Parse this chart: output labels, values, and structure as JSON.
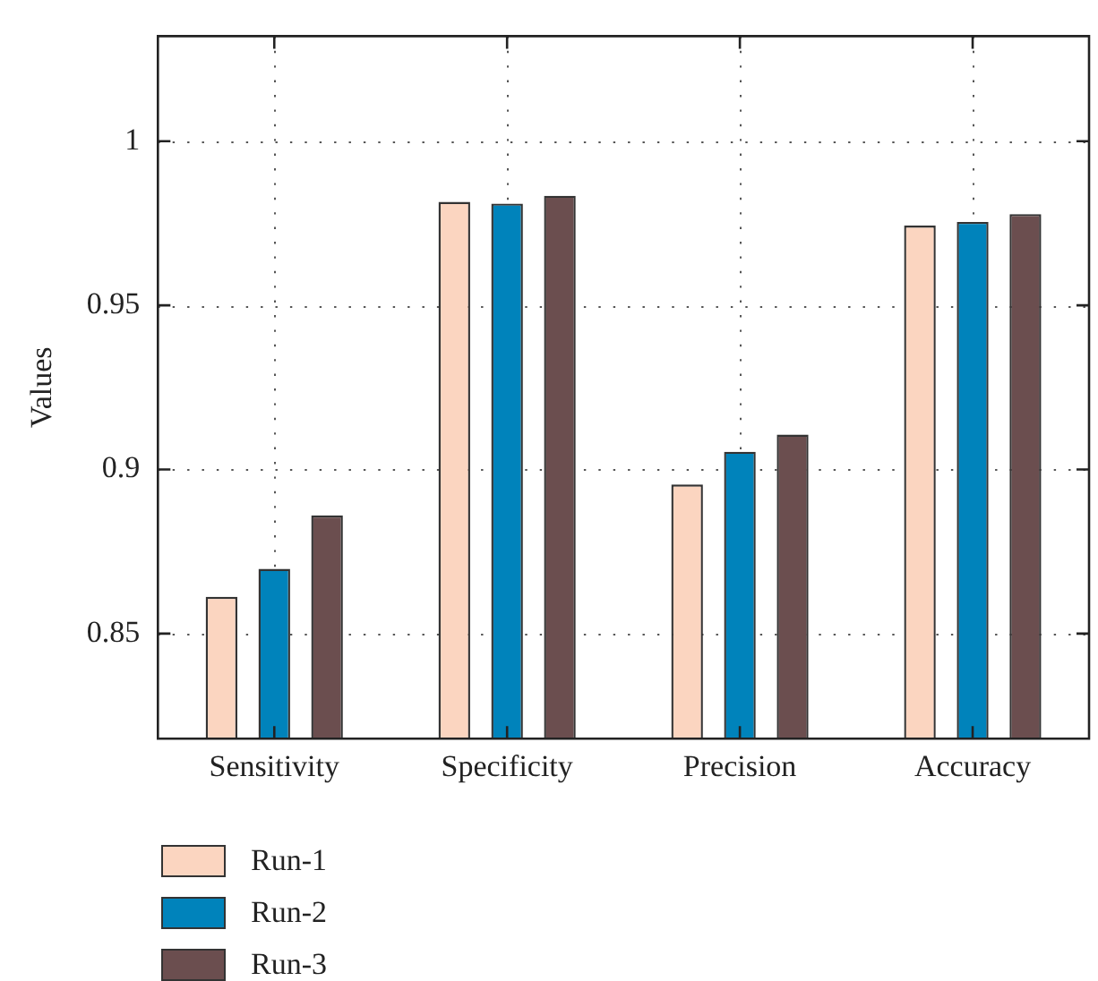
{
  "chart_data": {
    "type": "bar",
    "ylabel": "Values",
    "categories": [
      "Sensitivity",
      "Specificity",
      "Precision",
      "Accuracy"
    ],
    "series": [
      {
        "name": "Run-1",
        "color": "#fbd5c0",
        "values": [
          0.8612,
          0.9815,
          0.8954,
          0.9743
        ]
      },
      {
        "name": "Run-2",
        "color": "#0083bb",
        "values": [
          0.8697,
          0.981,
          0.9054,
          0.9754
        ]
      },
      {
        "name": "Run-3",
        "color": "#6b4e4f",
        "values": [
          0.886,
          0.9834,
          0.9106,
          0.9778
        ]
      }
    ],
    "ylim": [
      0.818,
      1.032
    ],
    "yticks": [
      0.85,
      0.9,
      0.95,
      1
    ],
    "grid": true,
    "legend": "bottom left"
  }
}
